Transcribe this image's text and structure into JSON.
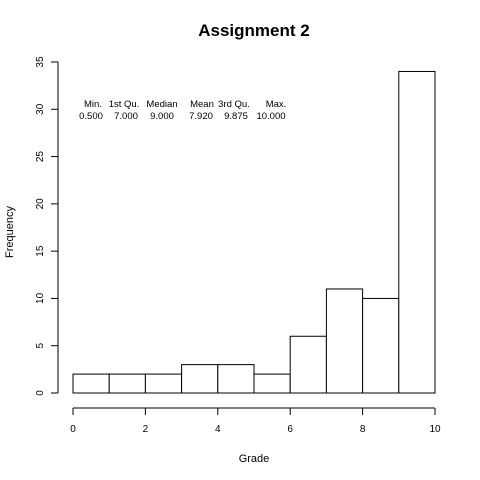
{
  "chart_data": {
    "type": "bar",
    "title": "Assignment 2",
    "xlabel": "Grade",
    "ylabel": "Frequency",
    "bin_edges": [
      0,
      1,
      2,
      3,
      4,
      5,
      6,
      7,
      8,
      9,
      10
    ],
    "values": [
      2,
      2,
      2,
      3,
      3,
      2,
      6,
      11,
      10,
      34
    ],
    "xlim": [
      0,
      10
    ],
    "ylim": [
      0,
      35
    ],
    "x_ticks": [
      "0",
      "2",
      "4",
      "6",
      "8",
      "10"
    ],
    "y_ticks": [
      "0",
      "5",
      "10",
      "15",
      "20",
      "25",
      "30",
      "35"
    ],
    "grid": false,
    "bar_fill": "#ffffff",
    "bar_stroke": "#000000",
    "summary": {
      "headers": [
        "Min.",
        "1st Qu.",
        "Median",
        "Mean",
        "3rd Qu.",
        "Max."
      ],
      "values": [
        "0.500",
        "7.000",
        "9.000",
        "7.920",
        "9.875",
        "10.000"
      ]
    }
  }
}
